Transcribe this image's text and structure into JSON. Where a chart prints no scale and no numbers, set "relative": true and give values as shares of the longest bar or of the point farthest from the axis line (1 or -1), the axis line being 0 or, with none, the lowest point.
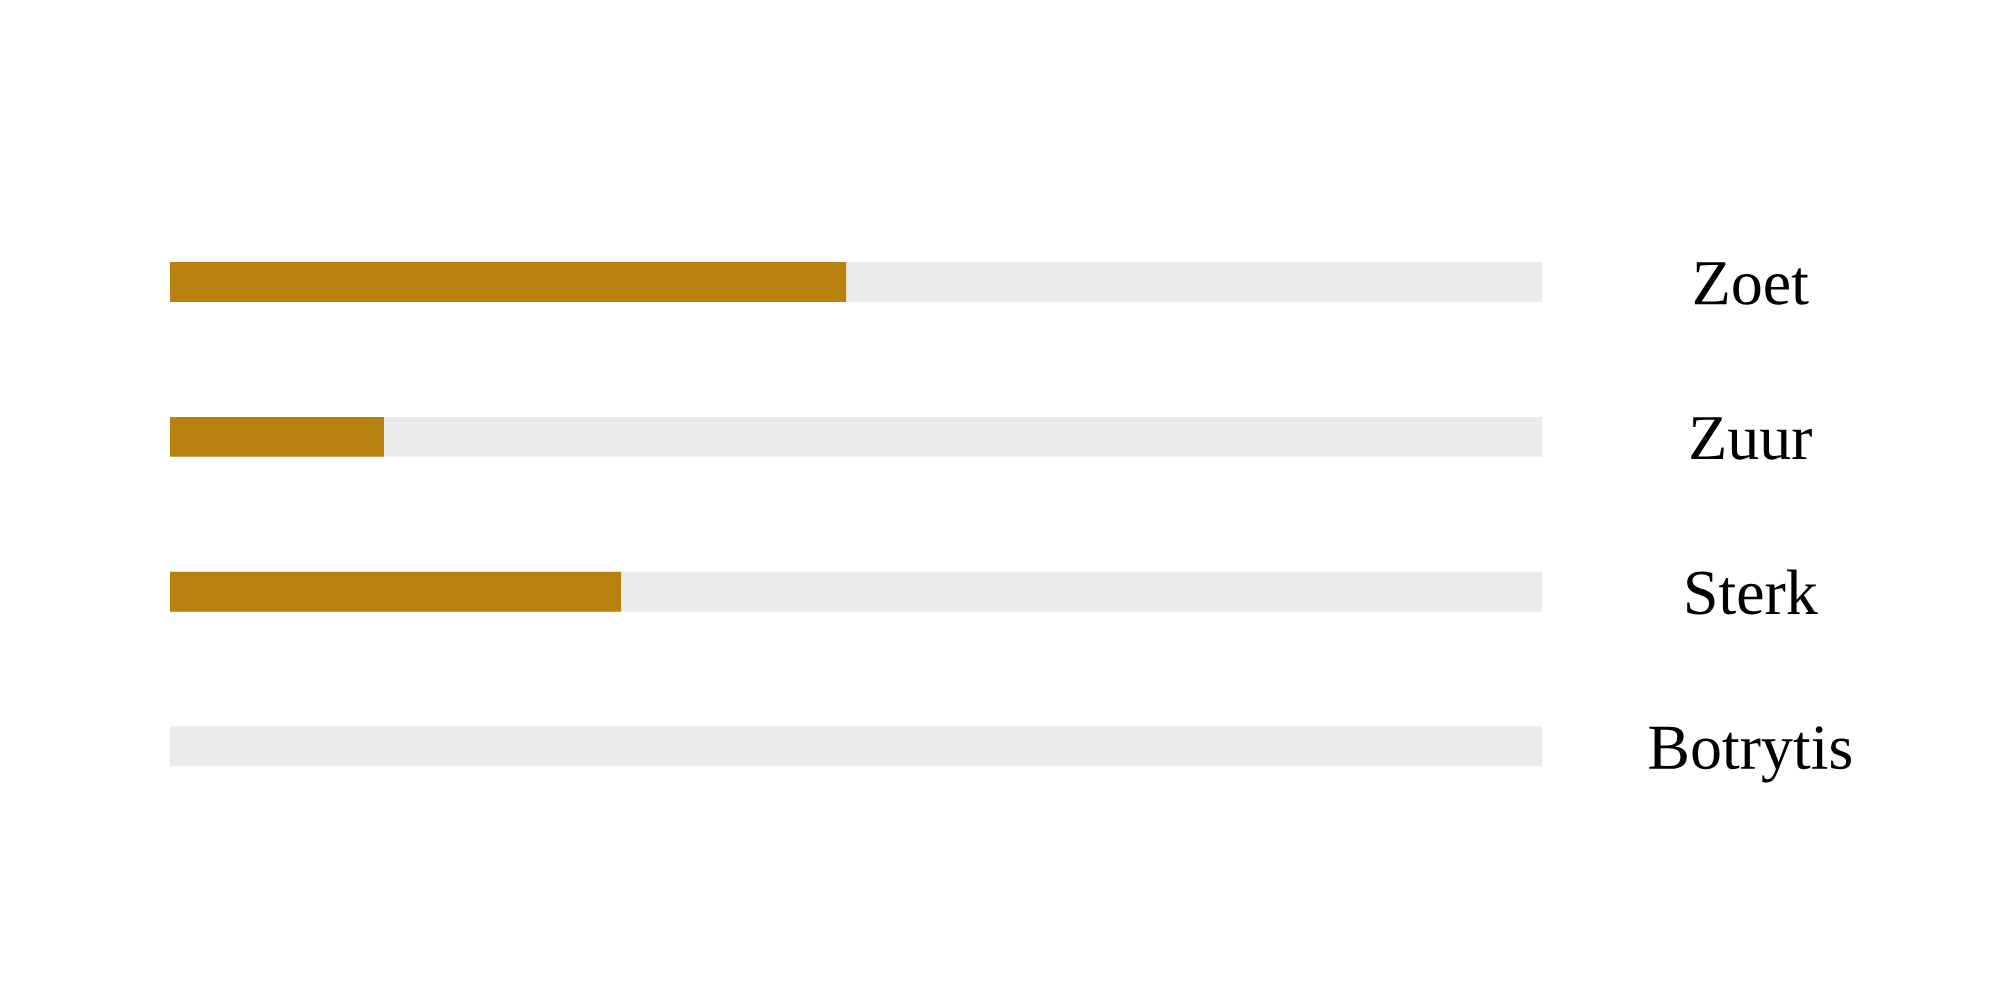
{
  "chart_data": {
    "type": "bar",
    "orientation": "horizontal",
    "stacked": true,
    "relative": true,
    "categories": [
      "Zoet",
      "Zuur",
      "Sterk",
      "Botrytis"
    ],
    "series": [
      {
        "color": "#b8800f",
        "values": [
          0.493,
          0.156,
          0.329,
          0
        ]
      },
      {
        "color": "#ebebeb",
        "values": [
          0.507,
          0.844,
          0.671,
          1
        ]
      }
    ],
    "grid": false
  }
}
